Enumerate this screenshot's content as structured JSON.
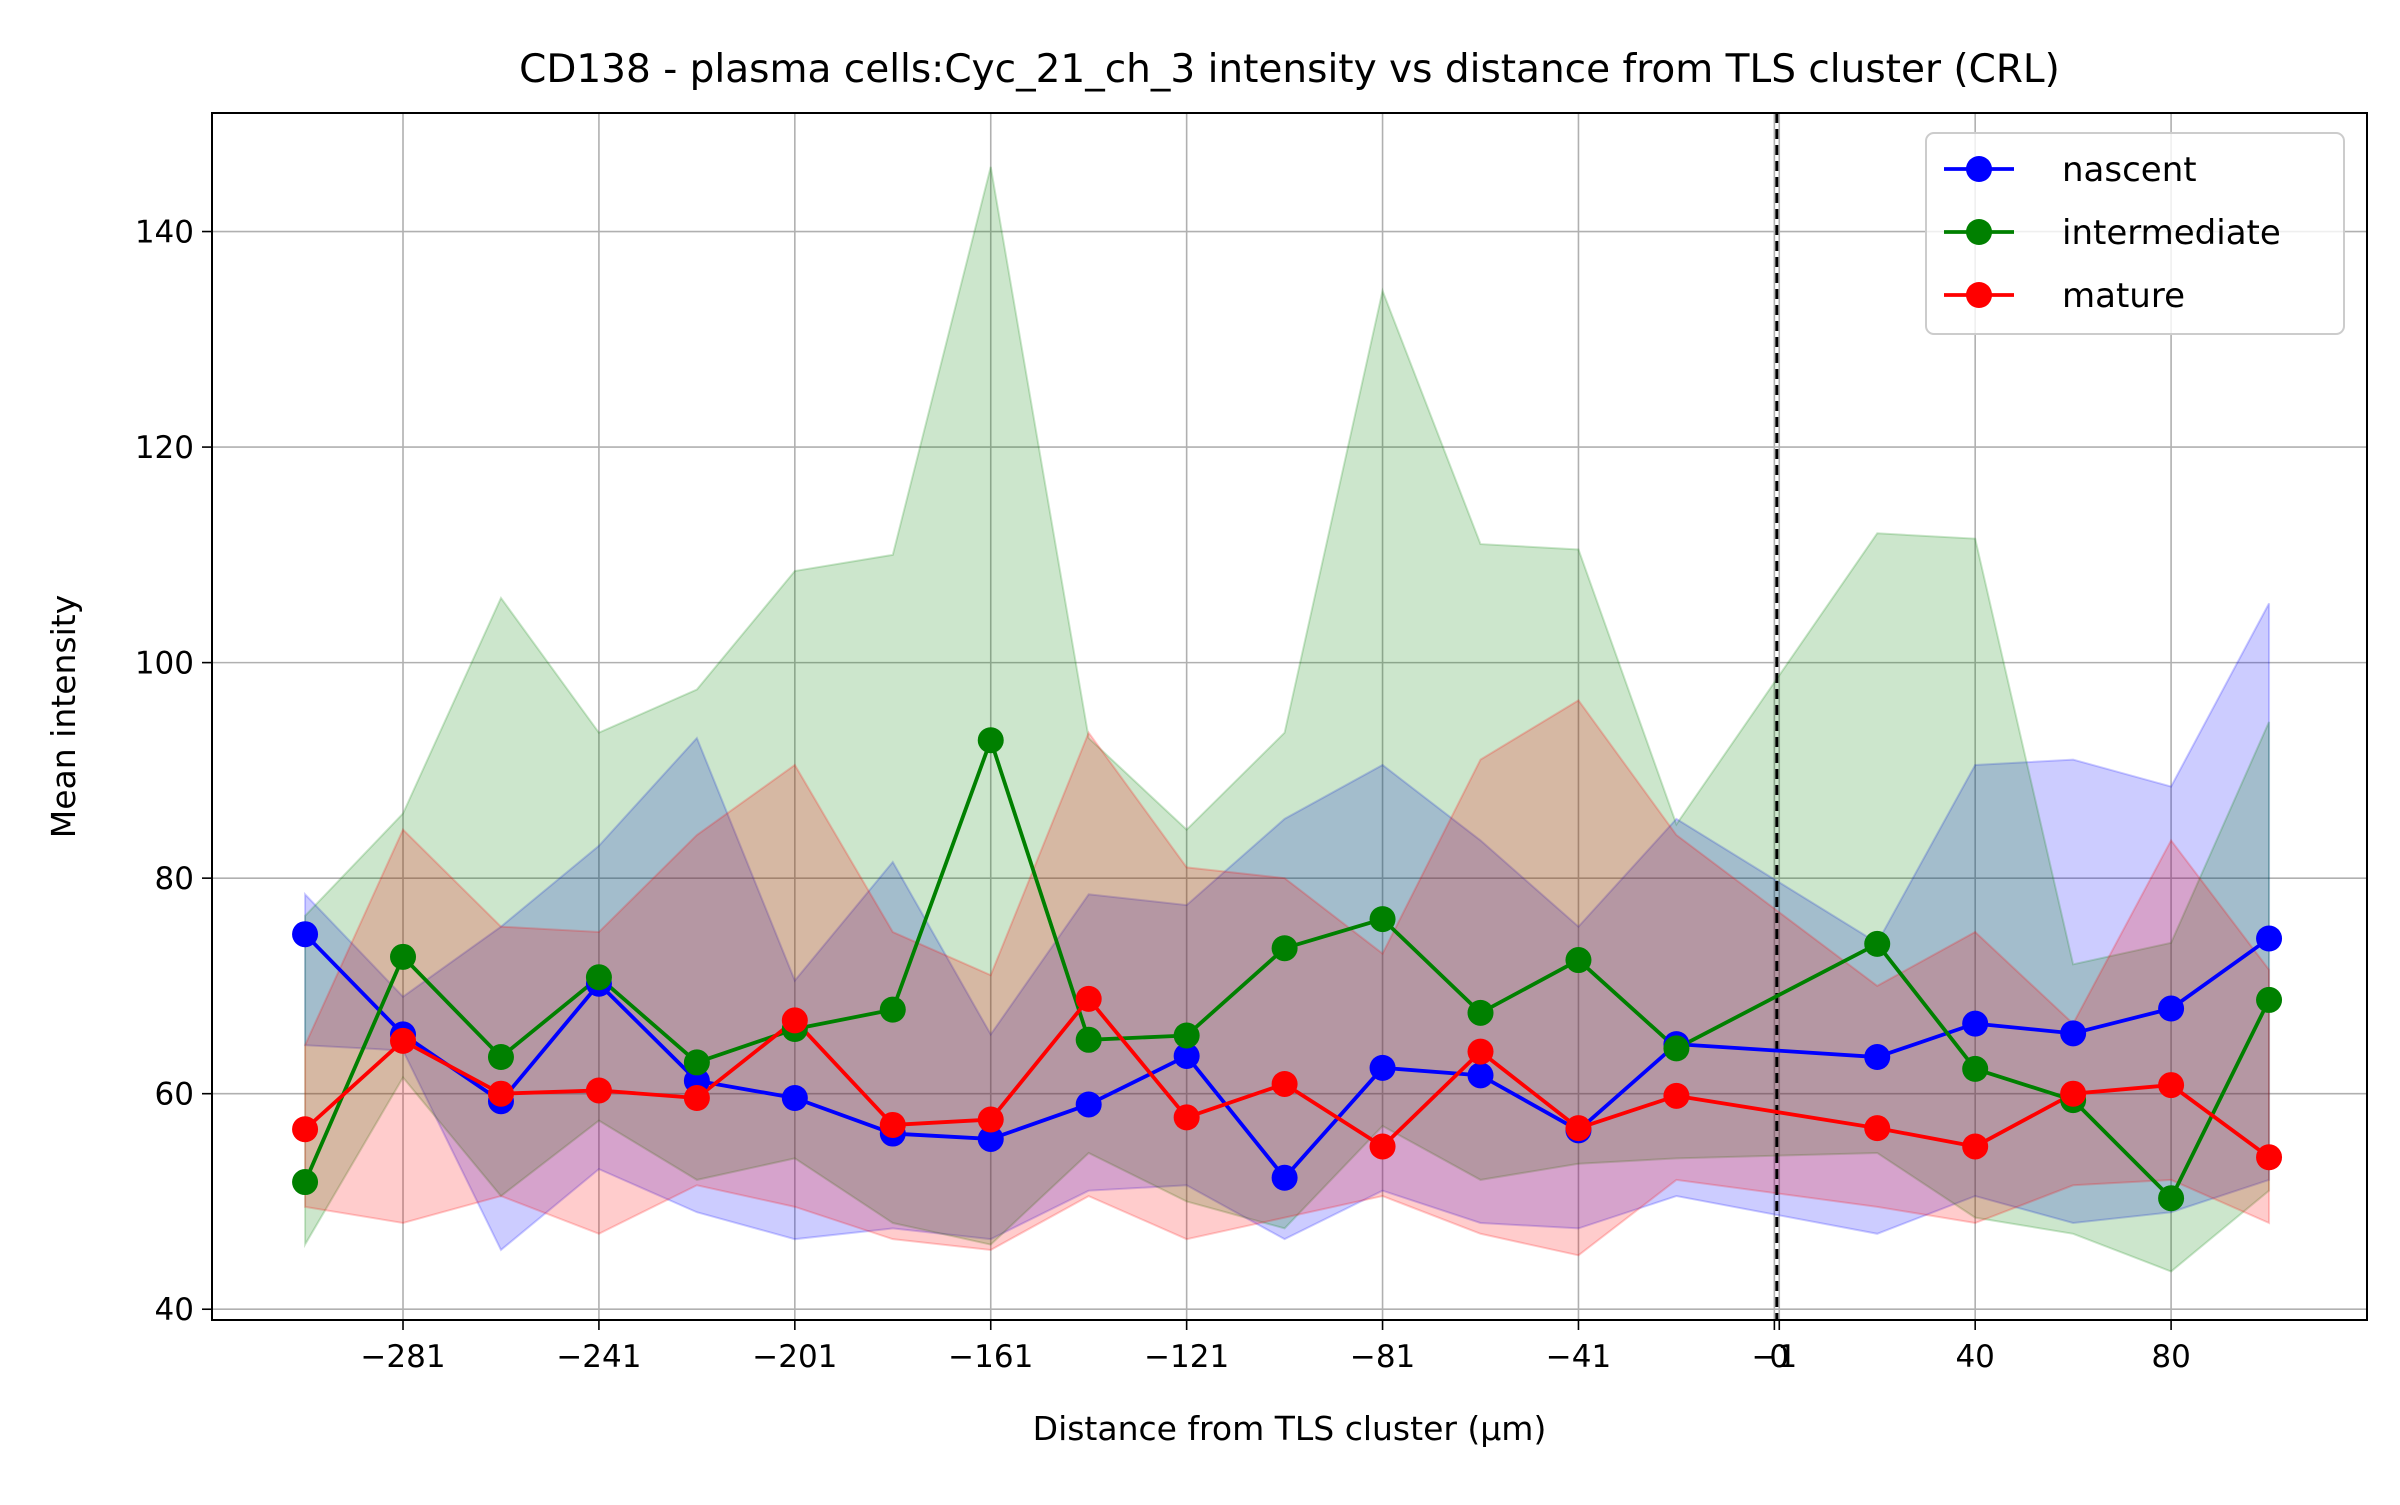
{
  "chart_data": {
    "type": "line",
    "title": "CD138 - plasma cells:Cyc_21_ch_3 intensity vs distance from TLS cluster (CRL)",
    "xlabel": "Distance from TLS cluster (μm)",
    "ylabel": "Mean intensity",
    "xlim": [
      -320,
      120
    ],
    "ylim": [
      39,
      151
    ],
    "grid": true,
    "legend_position": "top-right",
    "x_ticks": [
      {
        "value": -281,
        "label": "−281"
      },
      {
        "value": -241,
        "label": "−241"
      },
      {
        "value": -201,
        "label": "−201"
      },
      {
        "value": -161,
        "label": "−161"
      },
      {
        "value": -121,
        "label": "−121"
      },
      {
        "value": -81,
        "label": "−81"
      },
      {
        "value": -41,
        "label": "−41"
      },
      {
        "value": -1,
        "label": "−1"
      },
      {
        "value": 0,
        "label": "0"
      },
      {
        "value": 40,
        "label": "40"
      },
      {
        "value": 80,
        "label": "80"
      }
    ],
    "y_ticks": [
      {
        "value": 40,
        "label": "40"
      },
      {
        "value": 60,
        "label": "60"
      },
      {
        "value": 80,
        "label": "80"
      },
      {
        "value": 100,
        "label": "100"
      },
      {
        "value": 120,
        "label": "120"
      },
      {
        "value": 140,
        "label": "140"
      }
    ],
    "reference_line_x": -0.5,
    "series": [
      {
        "name": "nascent",
        "color": "#0000ff",
        "x": [
          -301,
          -281,
          -261,
          -241,
          -221,
          -201,
          -181,
          -161,
          -141,
          -121,
          -101,
          -81,
          -61,
          -41,
          -21,
          20,
          40,
          60,
          80,
          100
        ],
        "y": [
          74.8,
          65.5,
          59.3,
          70.2,
          61.2,
          59.6,
          56.3,
          55.8,
          59.0,
          63.5,
          52.2,
          62.4,
          61.7,
          56.6,
          64.6,
          63.4,
          66.5,
          65.6,
          67.9,
          74.4
        ],
        "lower": [
          64.5,
          64.0,
          45.5,
          53.0,
          49.0,
          46.5,
          47.5,
          46.5,
          51.0,
          51.5,
          46.5,
          51.0,
          48.0,
          47.5,
          50.5,
          47.0,
          50.5,
          48.0,
          49.0,
          52.0
        ],
        "upper": [
          78.5,
          69.0,
          75.5,
          83.0,
          93.0,
          70.5,
          81.5,
          65.5,
          78.5,
          77.5,
          85.5,
          90.5,
          83.5,
          75.5,
          85.5,
          74.0,
          90.5,
          91.0,
          88.5,
          105.5
        ]
      },
      {
        "name": "intermediate",
        "color": "#008000",
        "x": [
          -301,
          -281,
          -261,
          -241,
          -221,
          -201,
          -181,
          -161,
          -141,
          -121,
          -101,
          -81,
          -61,
          -41,
          -21,
          20,
          40,
          60,
          80,
          100
        ],
        "y": [
          51.8,
          72.7,
          63.4,
          70.8,
          62.9,
          66.0,
          67.8,
          92.8,
          65.0,
          65.4,
          73.5,
          76.2,
          67.5,
          72.4,
          64.2,
          73.9,
          62.3,
          59.4,
          50.3,
          68.7
        ],
        "lower": [
          46.0,
          61.5,
          50.5,
          57.5,
          52.0,
          54.0,
          48.0,
          46.0,
          54.5,
          50.0,
          47.5,
          57.0,
          52.0,
          53.5,
          54.0,
          54.5,
          48.5,
          47.0,
          43.5,
          51.0
        ],
        "upper": [
          76.5,
          86.0,
          106.0,
          93.5,
          97.5,
          108.5,
          110.0,
          146.0,
          93.0,
          84.5,
          93.5,
          134.5,
          111.0,
          110.5,
          85.0,
          112.0,
          111.5,
          72.0,
          74.0,
          94.5
        ]
      },
      {
        "name": "mature",
        "color": "#ff0000",
        "x": [
          -301,
          -281,
          -261,
          -241,
          -221,
          -201,
          -181,
          -161,
          -141,
          -121,
          -101,
          -81,
          -61,
          -41,
          -21,
          20,
          40,
          60,
          80,
          100
        ],
        "y": [
          56.7,
          64.9,
          60.0,
          60.3,
          59.6,
          66.8,
          57.1,
          57.6,
          68.8,
          57.8,
          60.9,
          55.1,
          63.9,
          56.8,
          59.8,
          56.8,
          55.1,
          60.0,
          60.8,
          54.1
        ],
        "lower": [
          49.5,
          48.0,
          50.5,
          47.0,
          51.5,
          49.5,
          46.5,
          45.5,
          50.5,
          46.5,
          48.5,
          50.5,
          47.0,
          45.0,
          52.0,
          49.5,
          48.0,
          51.5,
          52.0,
          48.0
        ],
        "upper": [
          64.5,
          84.5,
          75.5,
          75.0,
          84.0,
          90.5,
          75.0,
          71.0,
          93.5,
          81.0,
          80.0,
          73.0,
          91.0,
          96.5,
          84.0,
          70.0,
          75.0,
          66.5,
          83.5,
          71.5
        ]
      }
    ]
  }
}
